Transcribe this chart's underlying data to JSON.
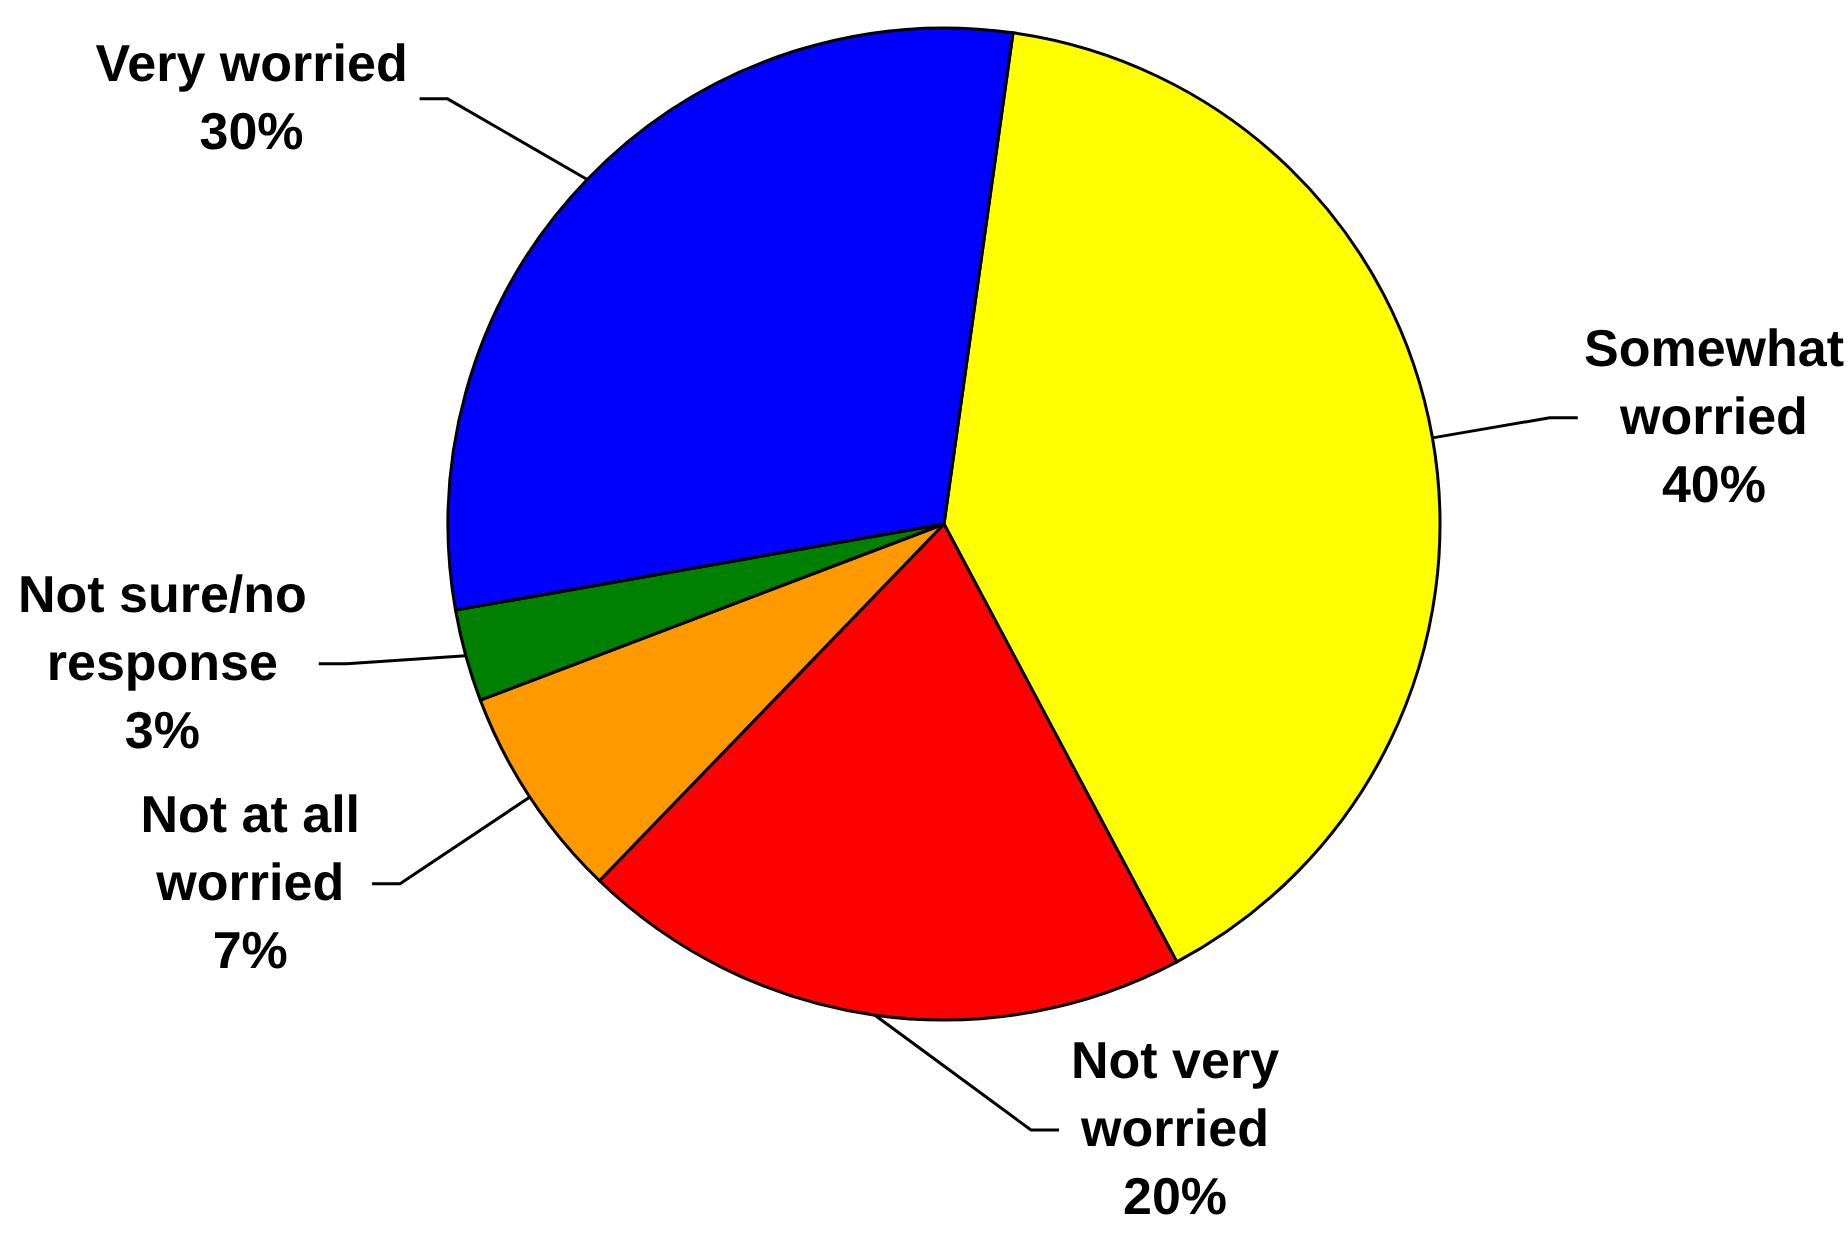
{
  "chart_data": {
    "type": "pie",
    "categories": [
      "Somewhat worried",
      "Not very worried",
      "Not at all worried",
      "Not sure/no response",
      "Very worried"
    ],
    "values": [
      40,
      20,
      7,
      3,
      30
    ],
    "value_labels": [
      "40%",
      "20%",
      "7%",
      "3%",
      "30%"
    ],
    "colors": [
      "#ffff00",
      "#ff0000",
      "#ff9900",
      "#008000",
      "#0000ff"
    ]
  }
}
